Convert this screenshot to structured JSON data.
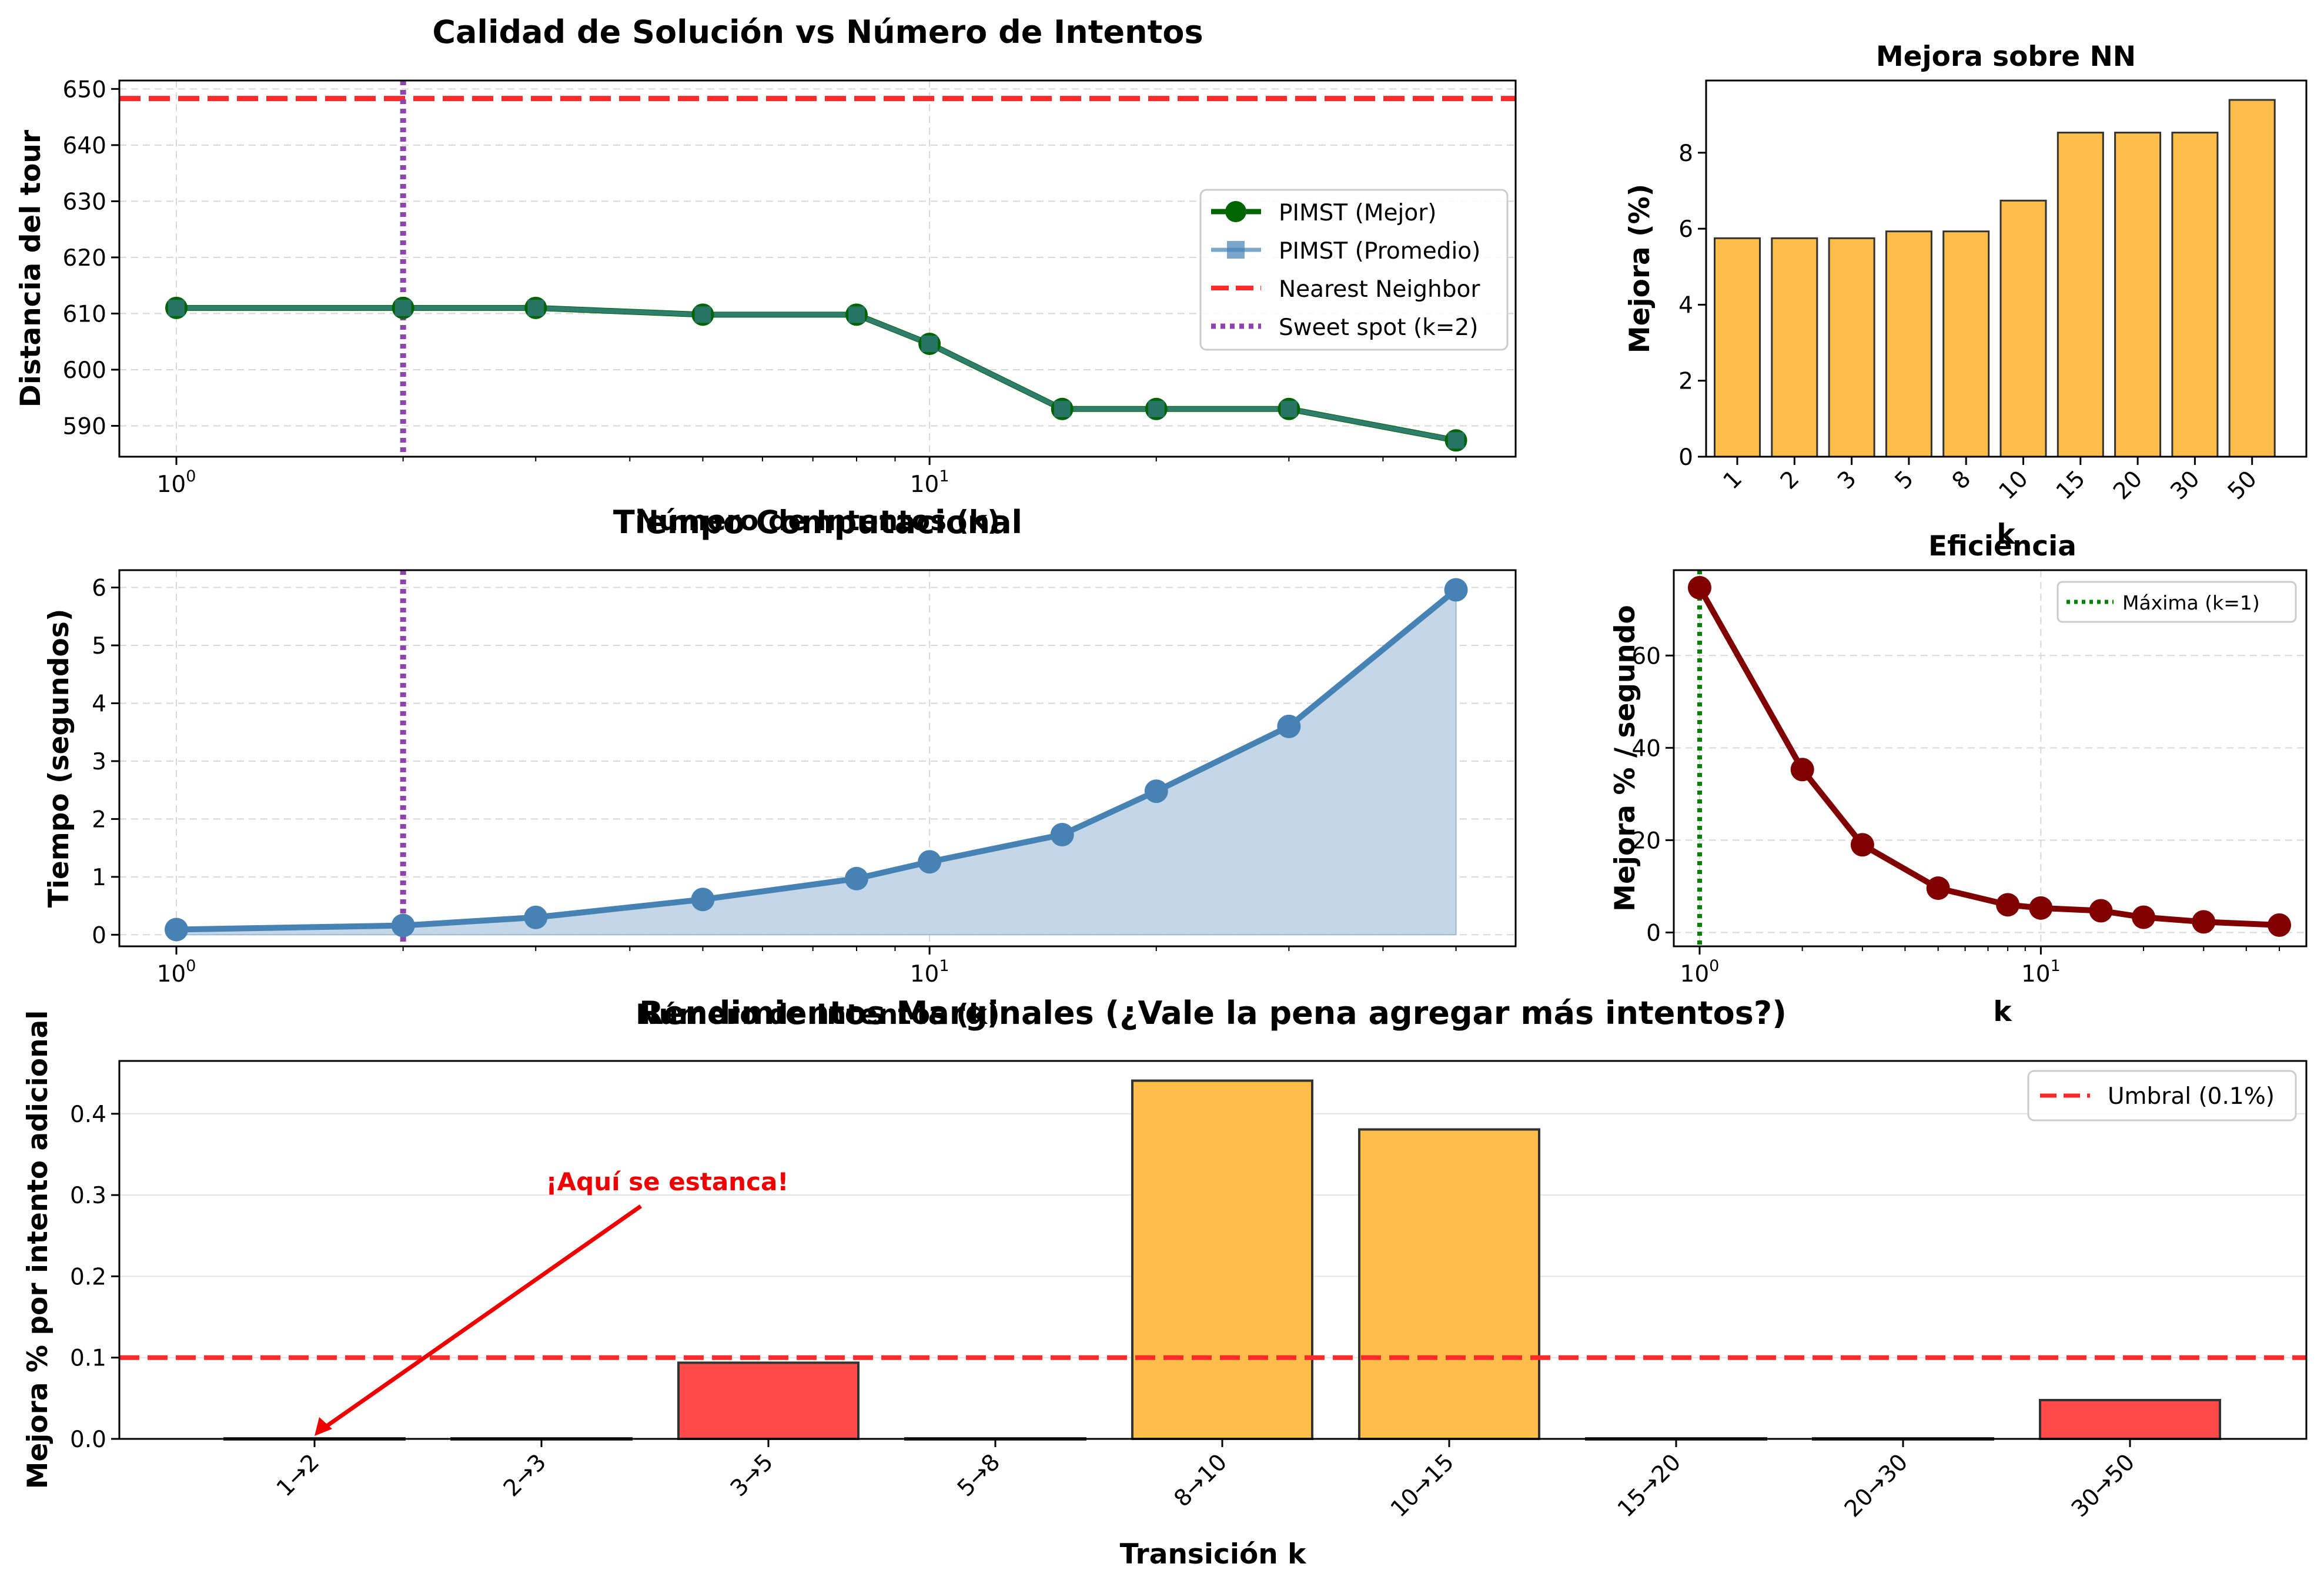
{
  "colors": {
    "nn": "#ff2a2a",
    "sweet": "#8e44ad",
    "best": "#006400",
    "avg": "#4682b4",
    "overlap": "#2e7d6e",
    "time": "#4682b4",
    "time_fill": "#c4d7e8",
    "bar_orange": "#ffbd4a",
    "bar_red": "#ff4a4a",
    "eff": "#800000",
    "max_line": "#008000",
    "annot": "#ee0000",
    "grid": "#d8d8d8",
    "edge": "#333333"
  },
  "chart_data": [
    {
      "id": "quality",
      "type": "line",
      "title": "Calidad de Solución vs Número de Intentos",
      "xlabel": "Número de Intentos (k)",
      "ylabel": "Distancia del tour",
      "xscale": "log",
      "xlim": [
        0.84,
        60
      ],
      "ylim": [
        584.5,
        651.5
      ],
      "xticks": [
        {
          "value": 1,
          "label": "10",
          "exp": "0"
        },
        {
          "value": 10,
          "label": "10",
          "exp": "1"
        }
      ],
      "yticks": [
        590,
        600,
        610,
        620,
        630,
        640,
        650
      ],
      "grid": true,
      "legend_position": "center-right",
      "x": [
        1,
        2,
        3,
        5,
        8,
        10,
        15,
        20,
        30,
        50
      ],
      "series": [
        {
          "name": "PIMST (Mejor)",
          "values": [
            611.0,
            611.0,
            611.0,
            609.8,
            609.8,
            604.6,
            593.0,
            593.0,
            593.0,
            587.4
          ]
        },
        {
          "name": "PIMST (Promedio)",
          "values": [
            611.0,
            611.0,
            611.0,
            609.8,
            609.8,
            604.6,
            593.0,
            593.0,
            593.0,
            587.4
          ]
        }
      ],
      "hlines": [
        {
          "name": "Nearest Neighbor",
          "value": 648.3
        }
      ],
      "vlines": [
        {
          "name": "Sweet spot (k=2)",
          "value": 2
        }
      ]
    },
    {
      "id": "improvement",
      "type": "bar",
      "title": "Mejora sobre NN",
      "xlabel": "k",
      "ylabel": "Mejora (%)",
      "ylim": [
        0,
        9.9
      ],
      "yticks": [
        0,
        2,
        4,
        6,
        8
      ],
      "categories": [
        "1",
        "2",
        "3",
        "5",
        "8",
        "10",
        "15",
        "20",
        "30",
        "50"
      ],
      "values": [
        5.75,
        5.75,
        5.75,
        5.93,
        5.93,
        6.74,
        8.53,
        8.53,
        8.53,
        9.39
      ]
    },
    {
      "id": "time",
      "type": "area",
      "title": "Tiempo Computacional",
      "xlabel": "Número de Intentos (k)",
      "ylabel": "Tiempo (segundos)",
      "xscale": "log",
      "xlim": [
        0.84,
        60
      ],
      "ylim": [
        -0.2,
        6.3
      ],
      "xticks": [
        {
          "value": 1,
          "label": "10",
          "exp": "0"
        },
        {
          "value": 10,
          "label": "10",
          "exp": "1"
        }
      ],
      "yticks": [
        0,
        1,
        2,
        3,
        4,
        5,
        6
      ],
      "grid": true,
      "x": [
        1,
        2,
        3,
        5,
        8,
        10,
        15,
        20,
        30,
        50
      ],
      "values": [
        0.09,
        0.16,
        0.3,
        0.61,
        0.97,
        1.26,
        1.73,
        2.48,
        3.6,
        5.96
      ],
      "vlines": [
        {
          "value": 2
        }
      ]
    },
    {
      "id": "efficiency",
      "type": "line",
      "title": "Eficiencia",
      "xlabel": "k",
      "ylabel": "Mejora % / segundo",
      "xscale": "log",
      "xlim": [
        0.84,
        60
      ],
      "ylim": [
        -3,
        78.5
      ],
      "xticks": [
        {
          "value": 1,
          "label": "10",
          "exp": "0"
        },
        {
          "value": 10,
          "label": "10",
          "exp": "1"
        }
      ],
      "yticks": [
        0,
        20,
        40,
        60
      ],
      "grid": true,
      "legend_position": "top-right",
      "x": [
        1,
        2,
        3,
        5,
        8,
        10,
        15,
        20,
        30,
        50
      ],
      "values": [
        74.7,
        35.3,
        19.0,
        9.6,
        6.0,
        5.3,
        4.7,
        3.3,
        2.3,
        1.6
      ],
      "vlines": [
        {
          "name": "Máxima (k=1)",
          "value": 1
        }
      ]
    },
    {
      "id": "marginal",
      "type": "bar",
      "title": "Rendimientos Marginales (¿Vale la pena agregar más intentos?)",
      "xlabel": "Transición k",
      "ylabel": "Mejora % por intento adicional",
      "ylim": [
        0,
        0.465
      ],
      "yticks": [
        0.0,
        0.1,
        0.2,
        0.3,
        0.4
      ],
      "categories": [
        "1→2",
        "2→3",
        "3→5",
        "5→8",
        "8→10",
        "10→15",
        "15→20",
        "20→30",
        "30→50"
      ],
      "values": [
        0.0,
        0.0,
        0.093,
        0.0,
        0.44,
        0.38,
        0.0,
        0.0,
        0.047
      ],
      "bar_colors": [
        "red",
        "red",
        "red",
        "red",
        "orange",
        "orange",
        "red",
        "red",
        "red"
      ],
      "hlines": [
        {
          "name": "Umbral (0.1%)",
          "value": 0.1
        }
      ],
      "annotation": {
        "text": "¡Aquí se estanca!",
        "category_index": 0,
        "value": 0.0
      }
    }
  ]
}
